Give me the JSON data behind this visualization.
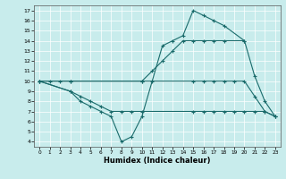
{
  "xlabel": "Humidex (Indice chaleur)",
  "bg_color": "#c8ecec",
  "line_color": "#1a6b6b",
  "xlim": [
    -0.5,
    23.5
  ],
  "ylim": [
    3.5,
    17.5
  ],
  "xticks": [
    0,
    1,
    2,
    3,
    4,
    5,
    6,
    7,
    8,
    9,
    10,
    11,
    12,
    13,
    14,
    15,
    16,
    17,
    18,
    19,
    20,
    21,
    22,
    23
  ],
  "yticks": [
    4,
    5,
    6,
    7,
    8,
    9,
    10,
    11,
    12,
    13,
    14,
    15,
    16,
    17
  ],
  "series": [
    {
      "x": [
        0,
        1,
        2,
        3,
        10,
        11,
        12,
        13,
        14,
        15,
        16,
        17,
        18,
        20
      ],
      "y": [
        10,
        10,
        10,
        10,
        10,
        11,
        12,
        13,
        14,
        14,
        14,
        14,
        14,
        14
      ]
    },
    {
      "x": [
        0,
        3,
        4,
        5,
        6,
        7,
        8,
        9,
        10,
        11,
        12,
        13,
        14,
        15,
        16,
        17,
        18,
        20,
        21,
        22,
        23
      ],
      "y": [
        10,
        9,
        8,
        7.5,
        7,
        6.5,
        4,
        4.5,
        6.5,
        10,
        13.5,
        14,
        14.5,
        17,
        16.5,
        16,
        15.5,
        14,
        10.5,
        8,
        6.5
      ]
    },
    {
      "x": [
        0,
        3,
        10,
        15,
        16,
        17,
        18,
        19,
        20,
        21,
        22,
        23
      ],
      "y": [
        10,
        10,
        10,
        10,
        10,
        10,
        10,
        10,
        10,
        8.5,
        7,
        6.5
      ]
    },
    {
      "x": [
        0,
        3,
        4,
        5,
        6,
        7,
        8,
        9,
        10,
        15,
        16,
        17,
        18,
        19,
        20,
        21,
        22,
        23
      ],
      "y": [
        10,
        9,
        8.5,
        8,
        7.5,
        7,
        7,
        7,
        7,
        7,
        7,
        7,
        7,
        7,
        7,
        7,
        7,
        6.5
      ]
    }
  ]
}
